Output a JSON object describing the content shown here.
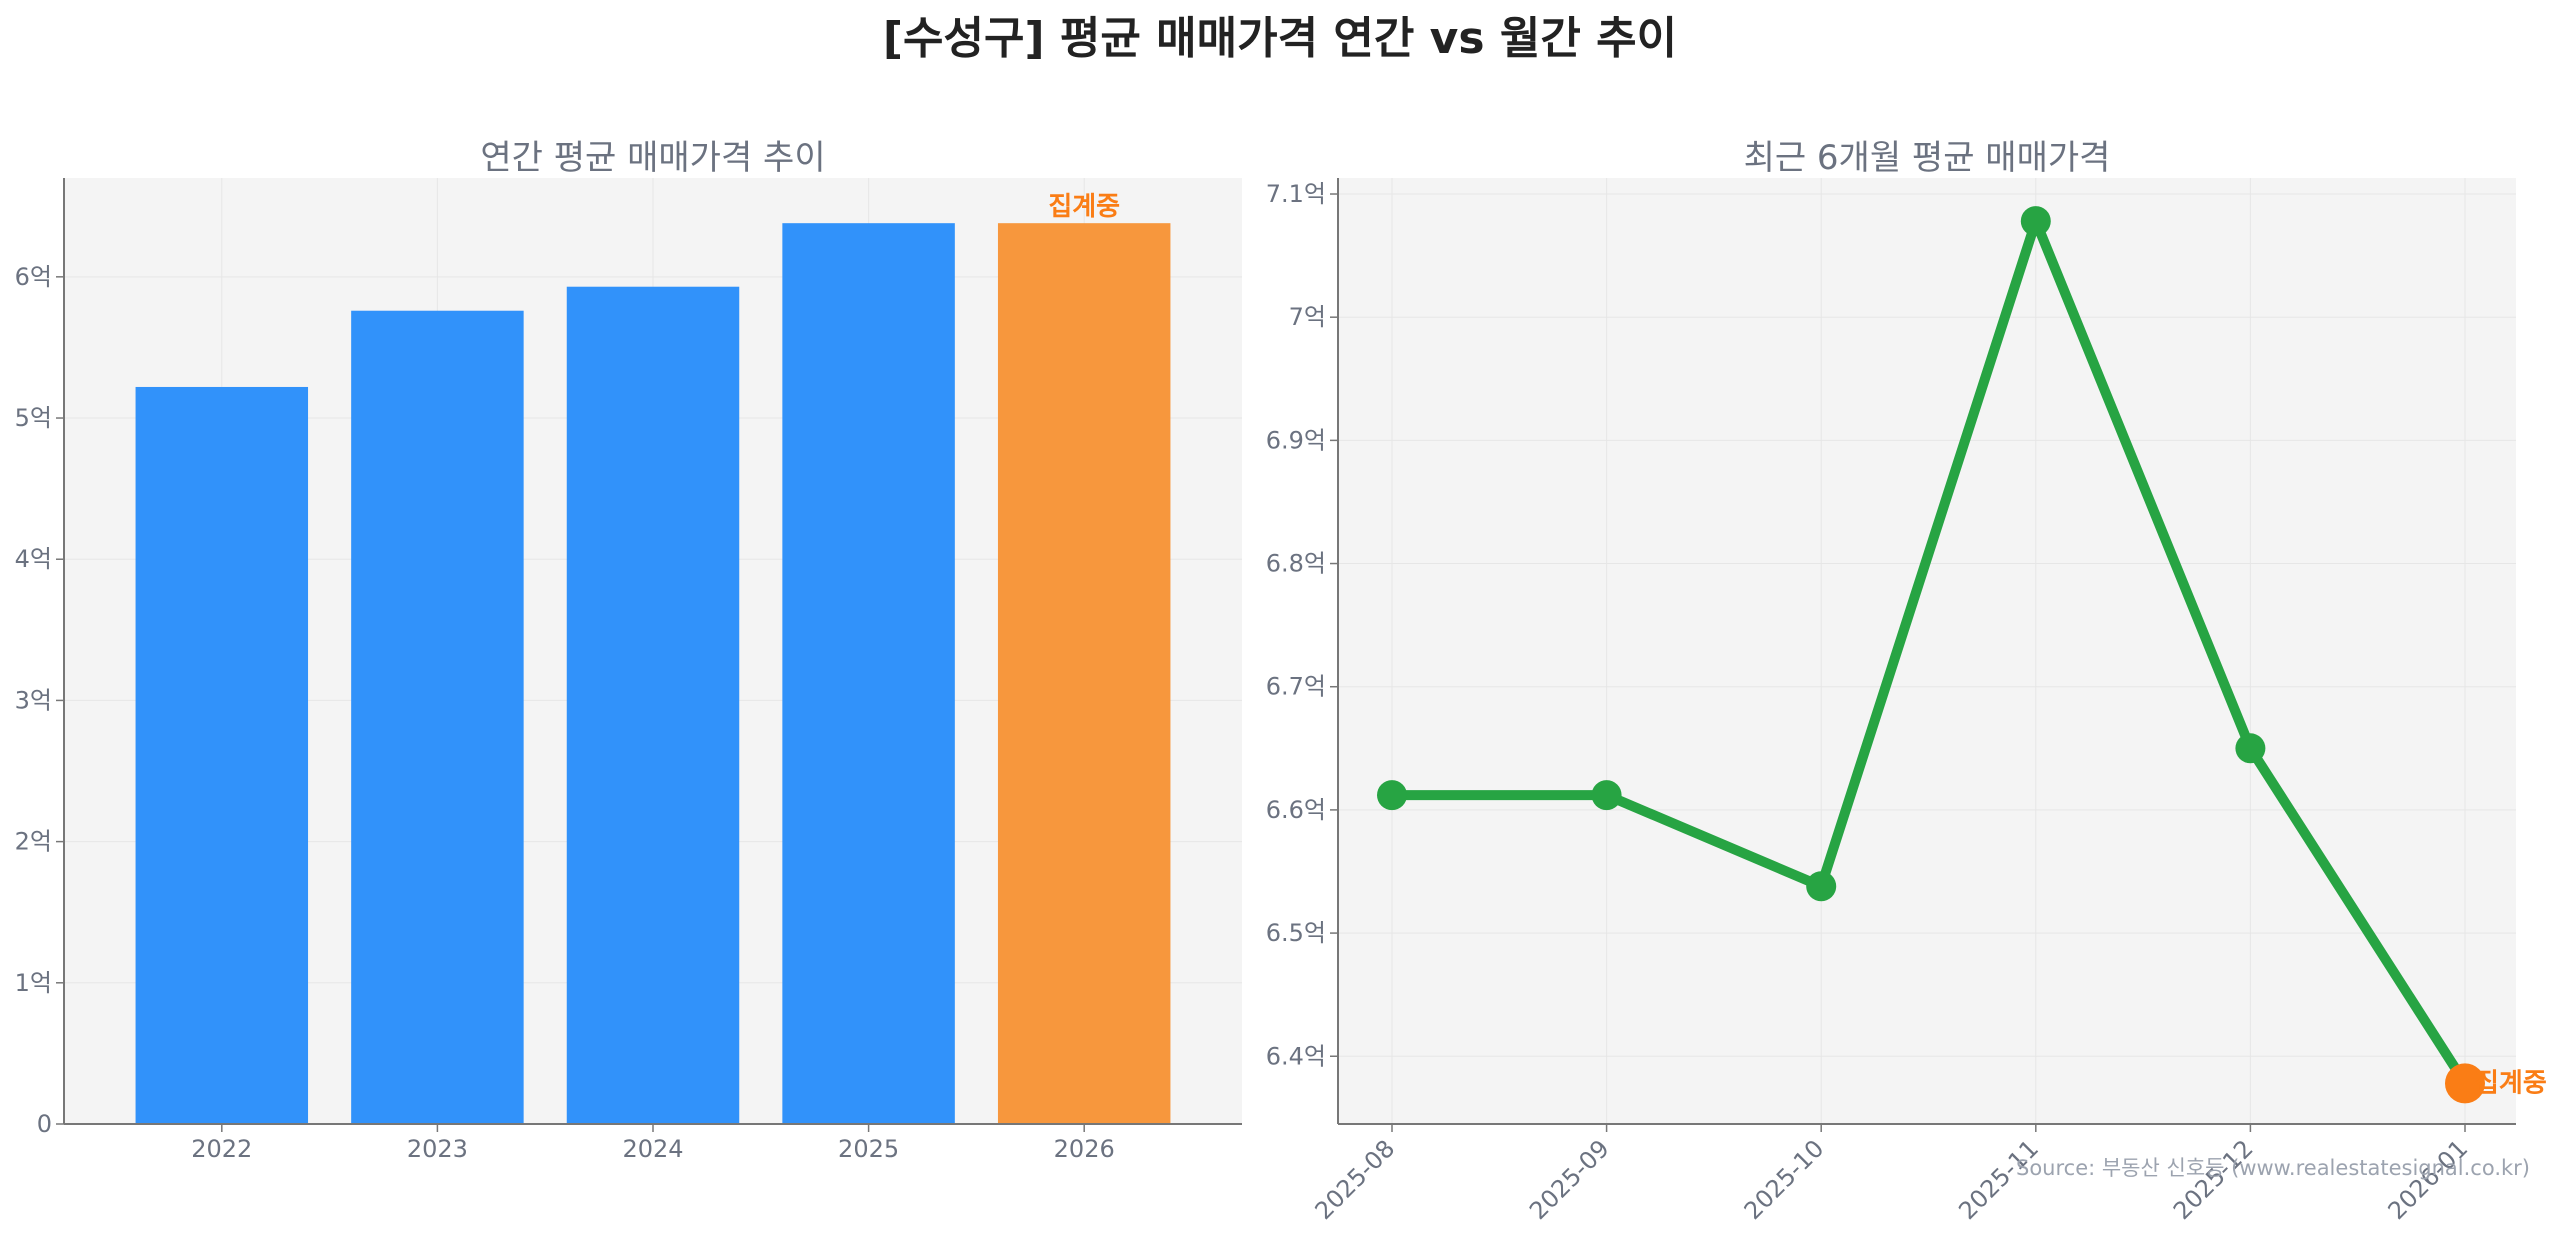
{
  "title": "[수성구] 평균 매매가격 연간 vs 월간 추이",
  "source": "Source: 부동산 신호등 (www.realestatesignal.co.kr)",
  "colors": {
    "bar": "#3192fa",
    "bar_highlight": "#f7973d",
    "line": "#27a443",
    "highlight": "#fa7d15",
    "panel_bg": "#f4f4f4",
    "axis": "#777777",
    "grid": "#e6e6e6"
  },
  "chart_data": [
    {
      "type": "bar",
      "title": "연간 평균 매매가격 추이",
      "categories": [
        "2022",
        "2023",
        "2024",
        "2025",
        "2026"
      ],
      "values": [
        5.22,
        5.76,
        5.93,
        6.38,
        6.38
      ],
      "value_unit": "억",
      "ylim": [
        0,
        6.7
      ],
      "yticks": [
        0,
        1,
        2,
        3,
        4,
        5,
        6
      ],
      "ytick_labels": [
        "0",
        "1억",
        "2억",
        "3억",
        "4억",
        "5억",
        "6억"
      ],
      "highlight_index": 4,
      "highlight_label": "집계중",
      "grid": true
    },
    {
      "type": "line",
      "title": "최근 6개월 평균 매매가격",
      "categories": [
        "2025-08",
        "2025-09",
        "2025-10",
        "2025-11",
        "2025-12",
        "2026-01"
      ],
      "values": [
        6.612,
        6.612,
        6.538,
        7.078,
        6.65,
        6.378
      ],
      "value_unit": "억",
      "ylim": [
        6.345,
        7.113
      ],
      "yticks": [
        6.4,
        6.5,
        6.6,
        6.7,
        6.8,
        6.9,
        7.0,
        7.1
      ],
      "ytick_labels": [
        "6.4억",
        "6.5억",
        "6.6억",
        "6.7억",
        "6.8억",
        "6.9억",
        "7억",
        "7.1억"
      ],
      "highlight_index": 5,
      "highlight_label": "집계중",
      "grid": true
    }
  ]
}
